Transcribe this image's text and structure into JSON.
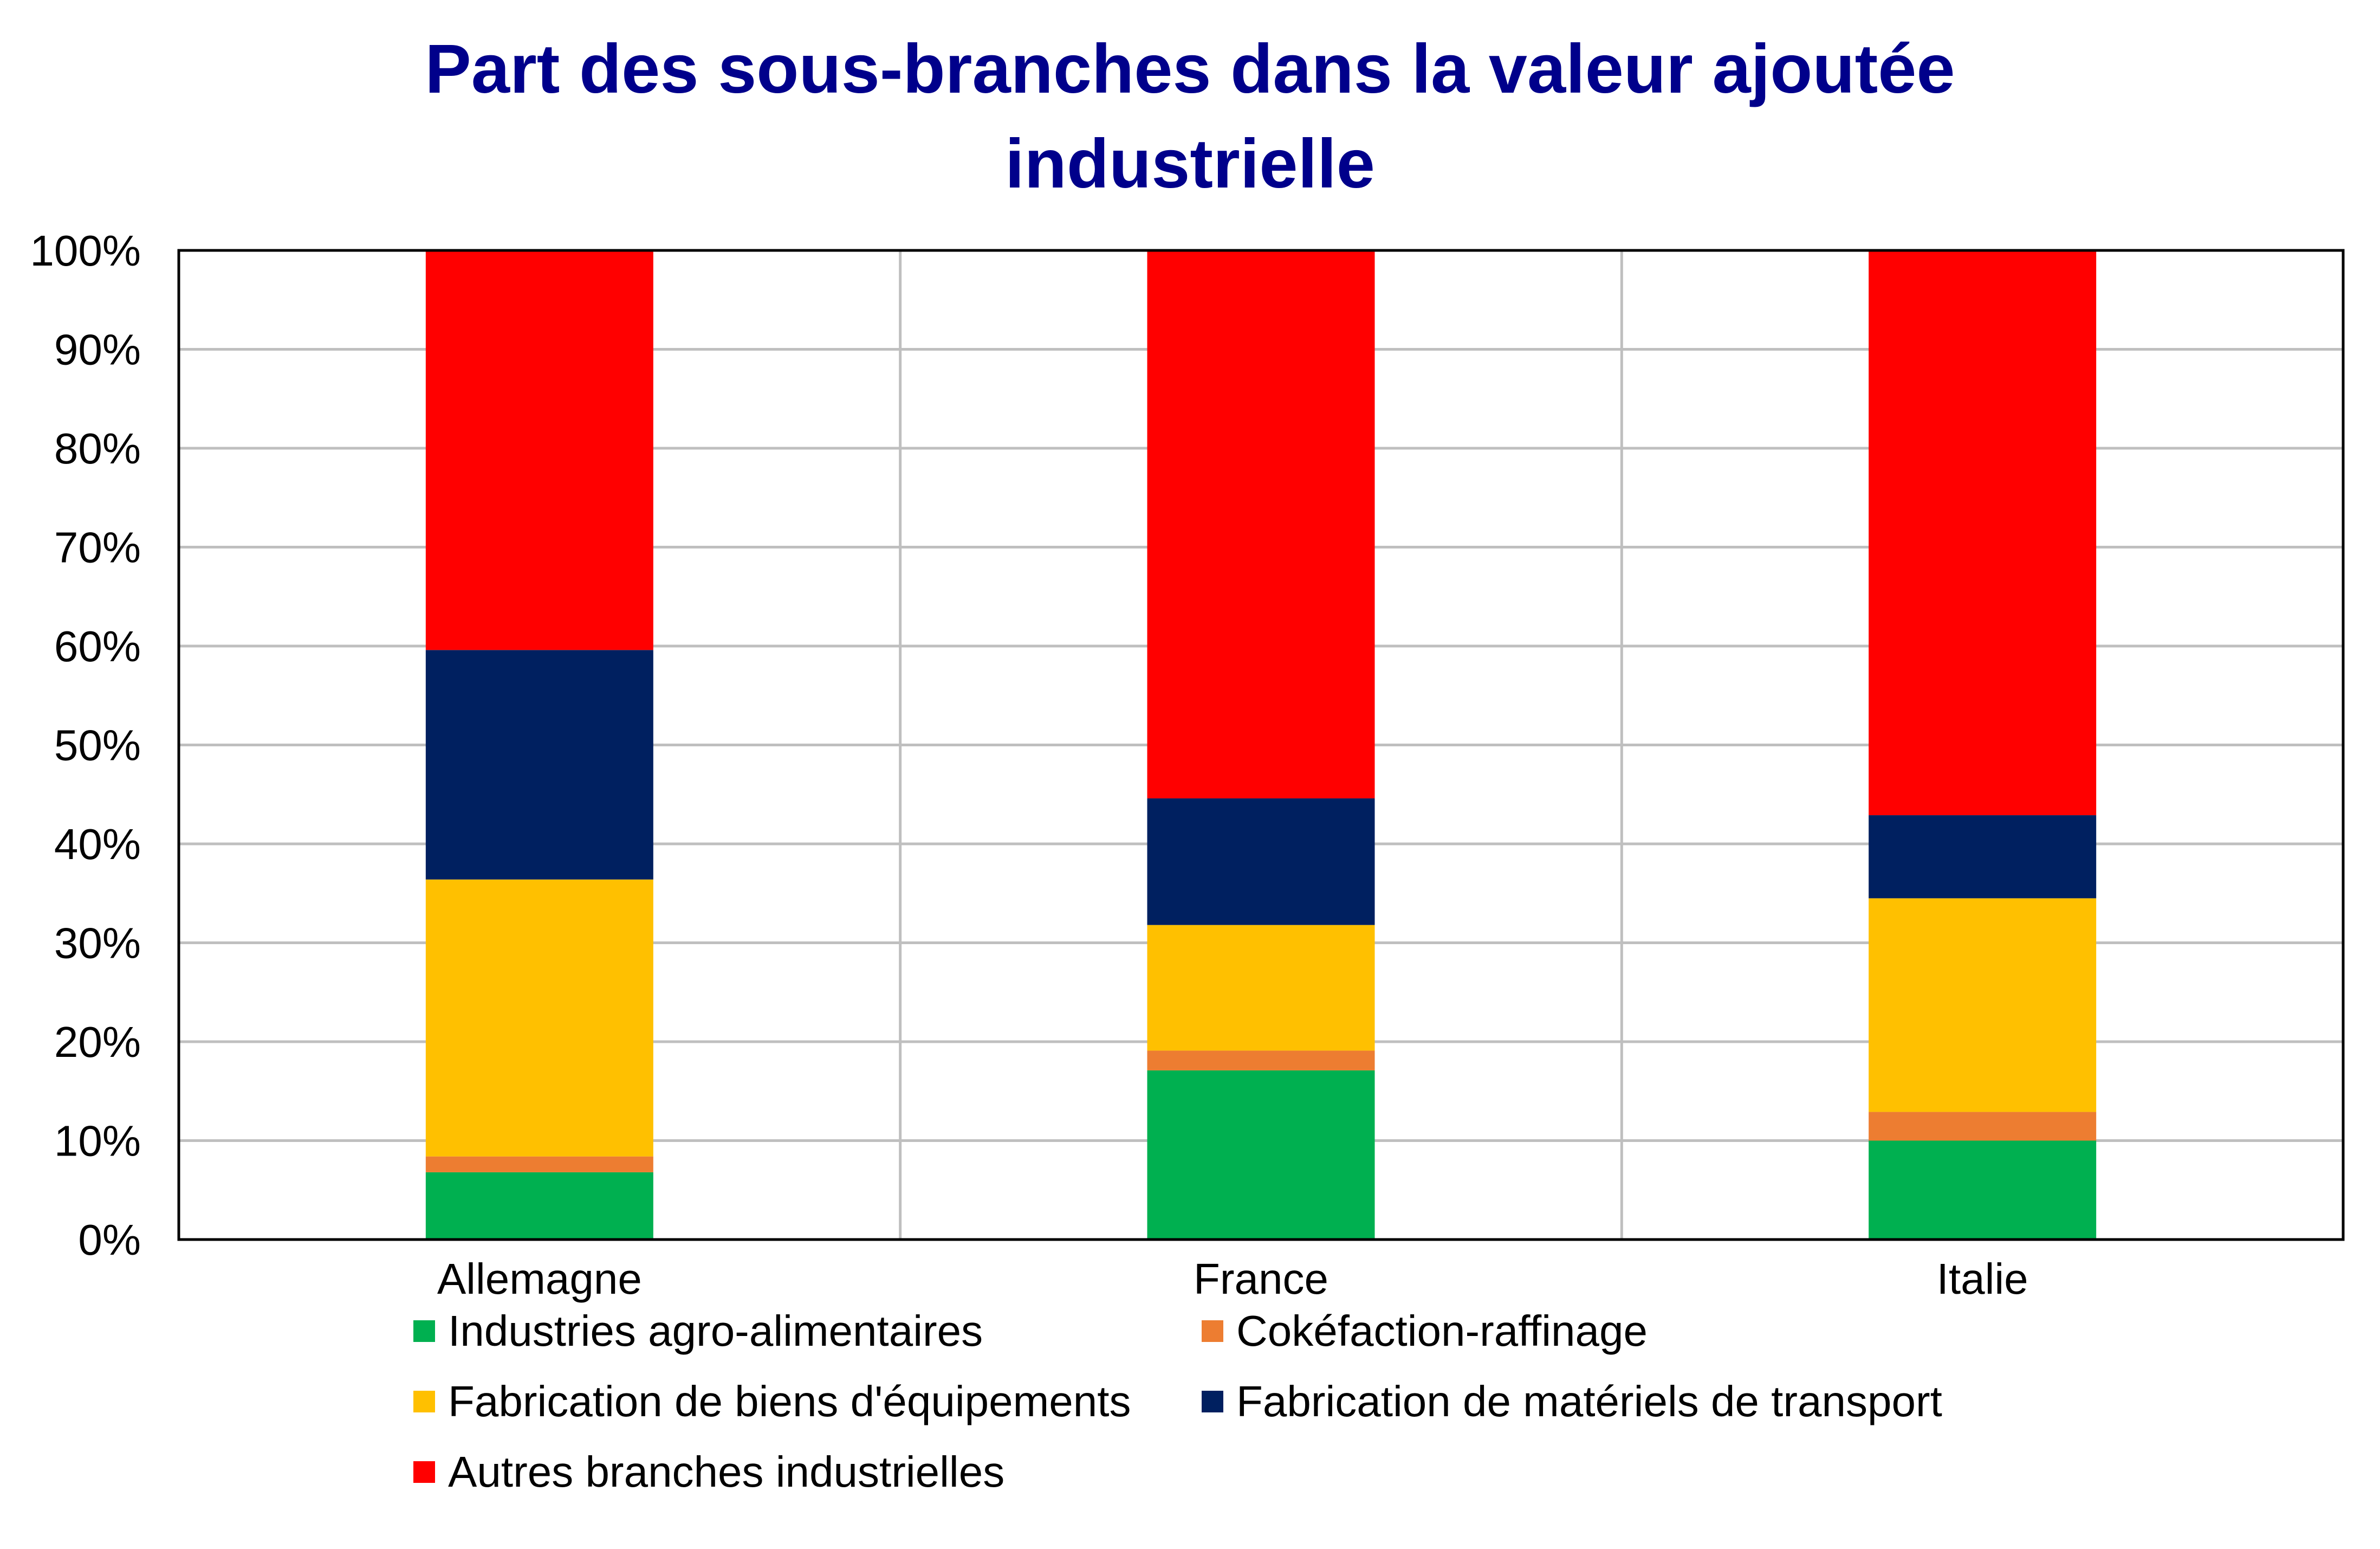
{
  "chart_data": {
    "type": "bar",
    "stacked": true,
    "title_lines": [
      "Part des sous-branches dans la valeur ajoutée",
      "industrielle"
    ],
    "xlabel": "",
    "ylabel": "",
    "ylim": [
      0,
      100
    ],
    "y_ticks": [
      "0%",
      "10%",
      "20%",
      "30%",
      "40%",
      "50%",
      "60%",
      "70%",
      "80%",
      "90%",
      "100%"
    ],
    "grid": true,
    "legend_position": "bottom",
    "categories": [
      "Allemagne",
      "France",
      "Italie"
    ],
    "series": [
      {
        "name": "Industries agro-alimentaires",
        "color": "#00b050",
        "values": [
          6.8,
          17.1,
          10.0
        ]
      },
      {
        "name": "Cokéfaction-raffinage",
        "color": "#ed7d31",
        "values": [
          1.6,
          2.0,
          2.9
        ]
      },
      {
        "name": "Fabrication de biens d'équipements",
        "color": "#ffc000",
        "values": [
          28.0,
          12.7,
          21.6
        ]
      },
      {
        "name": "Fabrication de matériels de transport",
        "color": "#002060",
        "values": [
          23.2,
          12.8,
          8.4
        ]
      },
      {
        "name": "Autres branches industrielles",
        "color": "#ff0000",
        "values": [
          40.4,
          55.4,
          57.1
        ]
      }
    ]
  }
}
